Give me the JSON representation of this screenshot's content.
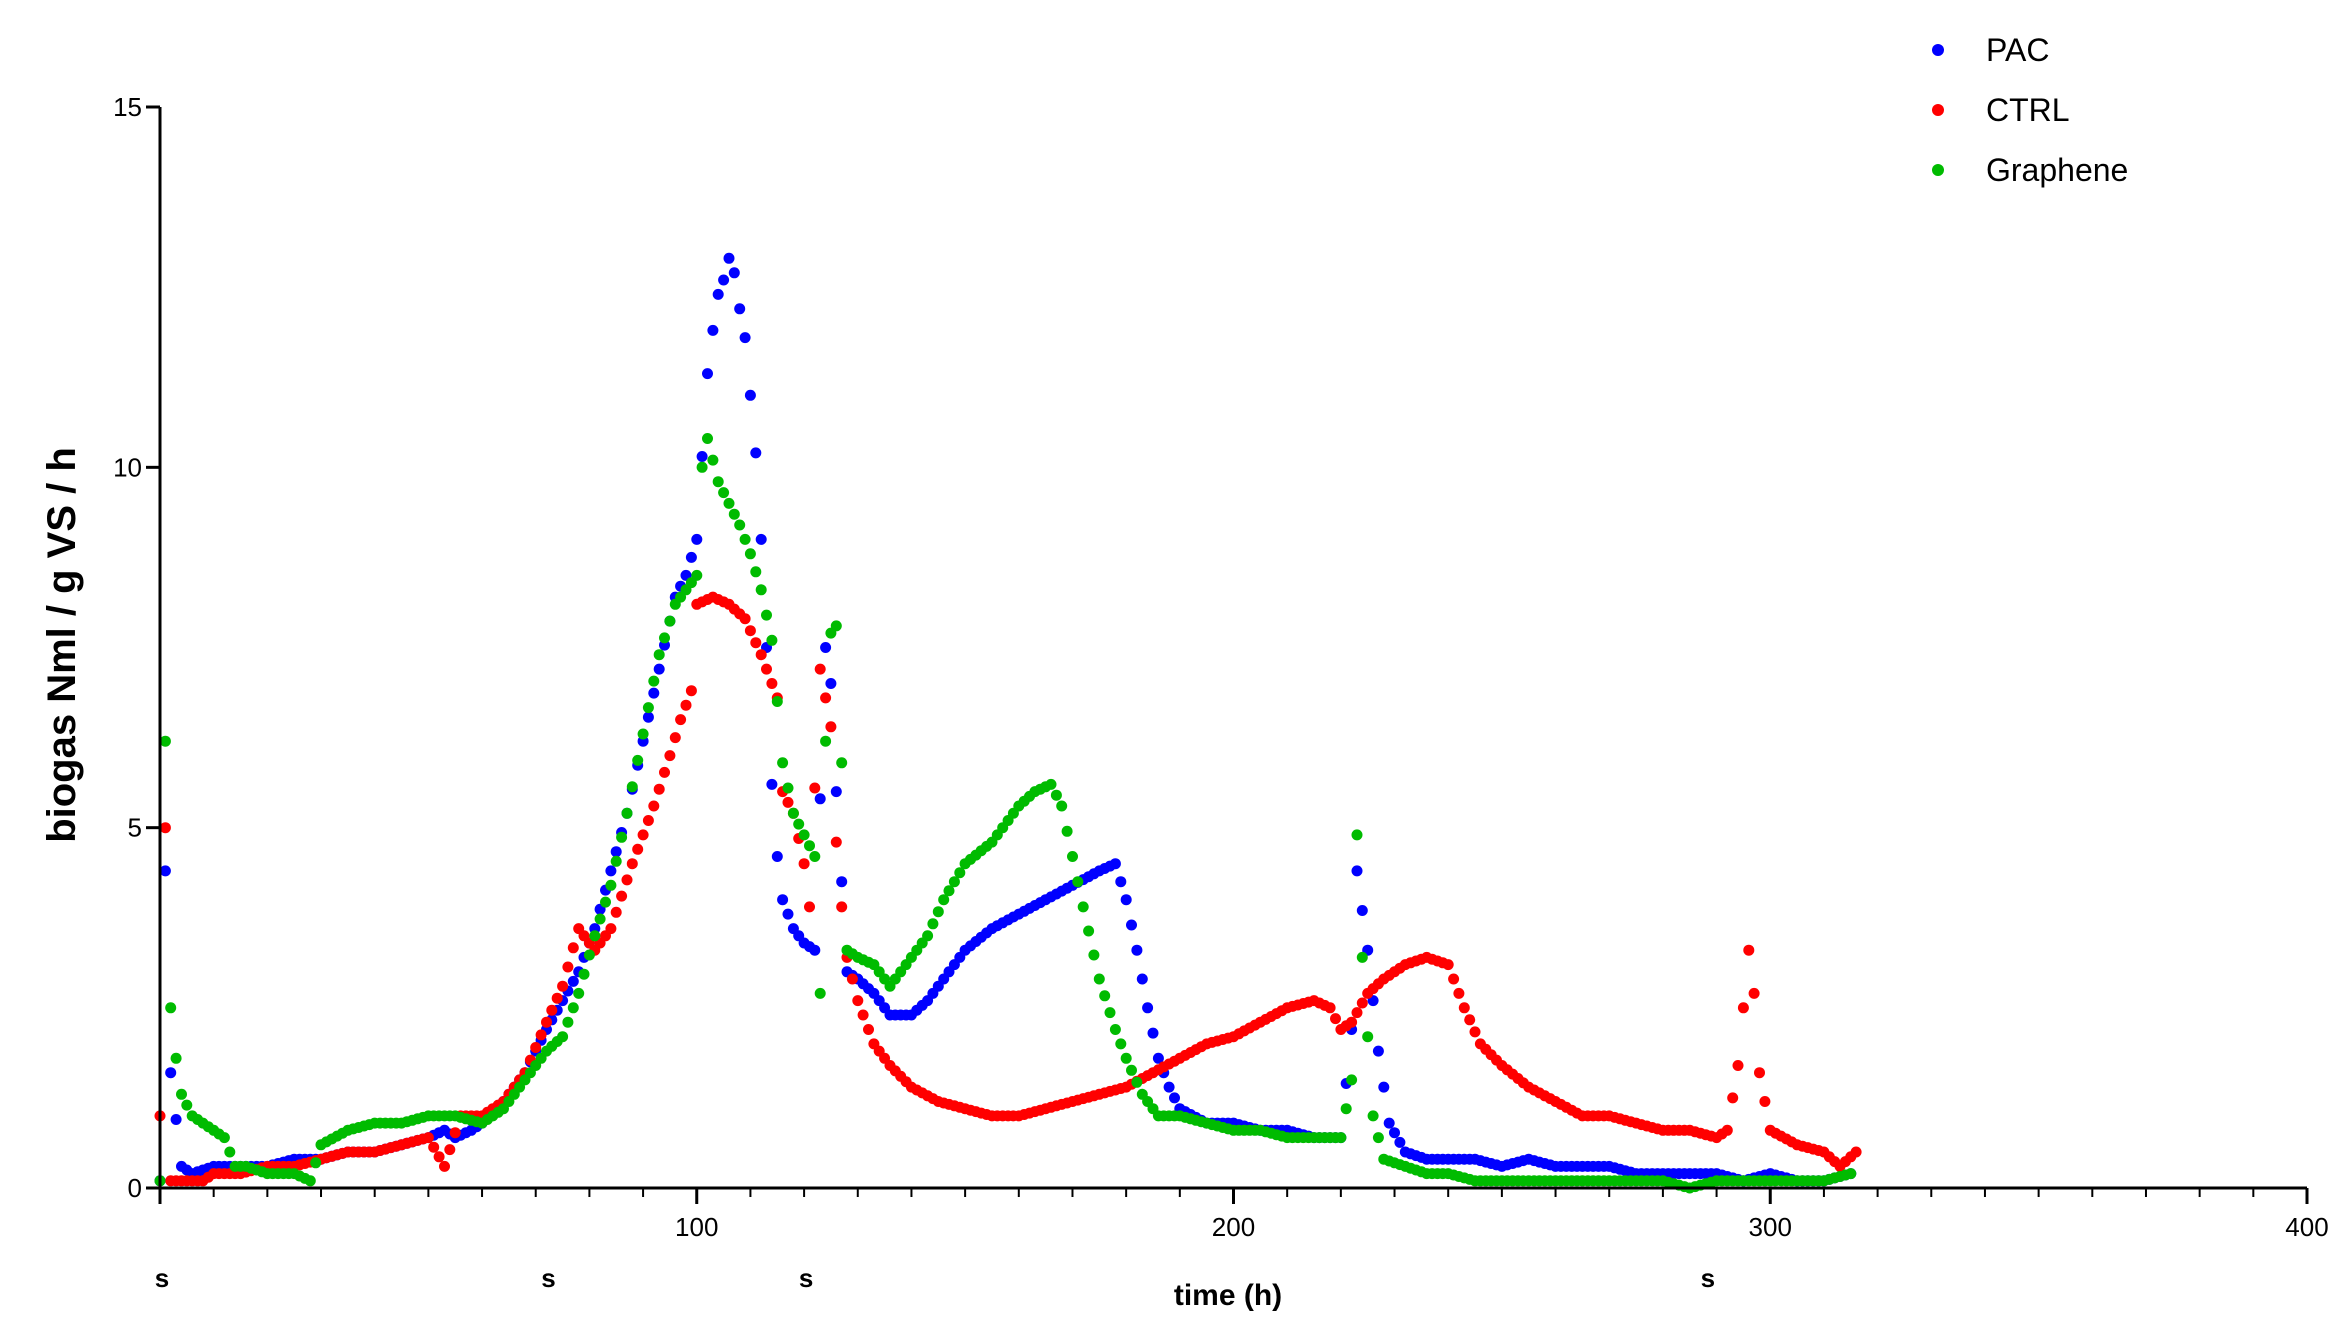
{
  "chart_data": {
    "type": "scatter",
    "title": "",
    "xlabel": "time (h)",
    "ylabel": "biogas  Nml / g  VS  / h",
    "xlim": [
      0,
      400
    ],
    "ylim": [
      0,
      15
    ],
    "xticks": [
      0,
      100,
      200,
      300,
      400
    ],
    "xtick_labels": [
      "",
      "100",
      "200",
      "300",
      "400"
    ],
    "yticks": [
      0,
      5,
      10,
      15
    ],
    "ytick_labels": [
      "0",
      "5",
      "10",
      "15"
    ],
    "grid": false,
    "legend_position": "top-right",
    "sample_marks": {
      "label": "s",
      "x": [
        0,
        72,
        120,
        288
      ]
    },
    "series": [
      {
        "name": "PAC",
        "color": "#0000ff",
        "keypoints": [
          [
            0,
            0.1
          ],
          [
            1,
            4.4
          ],
          [
            2,
            1.6
          ],
          [
            4,
            0.3
          ],
          [
            6,
            0.2
          ],
          [
            10,
            0.3
          ],
          [
            15,
            0.3
          ],
          [
            20,
            0.3
          ],
          [
            25,
            0.4
          ],
          [
            30,
            0.4
          ],
          [
            35,
            0.5
          ],
          [
            40,
            0.5
          ],
          [
            45,
            0.6
          ],
          [
            50,
            0.7
          ],
          [
            53,
            0.8
          ],
          [
            55,
            0.7
          ],
          [
            58,
            0.8
          ],
          [
            60,
            0.9
          ],
          [
            64,
            1.2
          ],
          [
            68,
            1.6
          ],
          [
            72,
            2.2
          ],
          [
            75,
            2.6
          ],
          [
            78,
            3.0
          ],
          [
            81,
            3.6
          ],
          [
            84,
            4.4
          ],
          [
            87,
            5.2
          ],
          [
            90,
            6.2
          ],
          [
            93,
            7.2
          ],
          [
            96,
            8.2
          ],
          [
            98,
            8.5
          ],
          [
            100,
            9.0
          ],
          [
            102,
            11.3
          ],
          [
            103,
            11.9
          ],
          [
            104,
            12.4
          ],
          [
            105,
            12.6
          ],
          [
            106,
            12.9
          ],
          [
            107,
            12.7
          ],
          [
            108,
            12.2
          ],
          [
            109,
            11.8
          ],
          [
            110,
            11.0
          ],
          [
            111,
            10.2
          ],
          [
            112,
            9.0
          ],
          [
            113,
            7.5
          ],
          [
            114,
            5.6
          ],
          [
            115,
            4.6
          ],
          [
            116,
            4.0
          ],
          [
            118,
            3.6
          ],
          [
            120,
            3.4
          ],
          [
            122,
            3.3
          ],
          [
            124,
            7.5
          ],
          [
            125,
            7.0
          ],
          [
            126,
            5.5
          ],
          [
            128,
            3.0
          ],
          [
            130,
            2.9
          ],
          [
            133,
            2.7
          ],
          [
            136,
            2.4
          ],
          [
            140,
            2.4
          ],
          [
            143,
            2.6
          ],
          [
            146,
            2.9
          ],
          [
            150,
            3.3
          ],
          [
            155,
            3.6
          ],
          [
            160,
            3.8
          ],
          [
            165,
            4.0
          ],
          [
            170,
            4.2
          ],
          [
            175,
            4.4
          ],
          [
            178,
            4.5
          ],
          [
            180,
            4.0
          ],
          [
            182,
            3.3
          ],
          [
            184,
            2.5
          ],
          [
            186,
            1.8
          ],
          [
            188,
            1.4
          ],
          [
            190,
            1.1
          ],
          [
            195,
            0.9
          ],
          [
            200,
            0.9
          ],
          [
            205,
            0.8
          ],
          [
            210,
            0.8
          ],
          [
            215,
            0.7
          ],
          [
            220,
            0.7
          ],
          [
            222,
            2.2
          ],
          [
            223,
            4.4
          ],
          [
            225,
            3.3
          ],
          [
            227,
            1.9
          ],
          [
            229,
            0.9
          ],
          [
            232,
            0.5
          ],
          [
            236,
            0.4
          ],
          [
            240,
            0.4
          ],
          [
            245,
            0.4
          ],
          [
            250,
            0.3
          ],
          [
            255,
            0.4
          ],
          [
            260,
            0.3
          ],
          [
            265,
            0.3
          ],
          [
            270,
            0.3
          ],
          [
            275,
            0.2
          ],
          [
            280,
            0.2
          ],
          [
            285,
            0.2
          ],
          [
            290,
            0.2
          ],
          [
            295,
            0.1
          ],
          [
            300,
            0.2
          ],
          [
            305,
            0.1
          ],
          [
            310,
            0.1
          ],
          [
            315,
            0.2
          ]
        ]
      },
      {
        "name": "CTRL",
        "color": "#ff0000",
        "keypoints": [
          [
            0,
            1.0
          ],
          [
            1,
            5.0
          ],
          [
            2,
            0.1
          ],
          [
            5,
            0.1
          ],
          [
            8,
            0.1
          ],
          [
            10,
            0.2
          ],
          [
            15,
            0.2
          ],
          [
            20,
            0.3
          ],
          [
            25,
            0.3
          ],
          [
            30,
            0.4
          ],
          [
            35,
            0.5
          ],
          [
            40,
            0.5
          ],
          [
            45,
            0.6
          ],
          [
            50,
            0.7
          ],
          [
            53,
            0.3
          ],
          [
            56,
            1.0
          ],
          [
            60,
            1.0
          ],
          [
            64,
            1.2
          ],
          [
            68,
            1.6
          ],
          [
            72,
            2.3
          ],
          [
            75,
            2.8
          ],
          [
            78,
            3.6
          ],
          [
            81,
            3.3
          ],
          [
            84,
            3.6
          ],
          [
            88,
            4.5
          ],
          [
            92,
            5.3
          ],
          [
            95,
            6.0
          ],
          [
            97,
            6.5
          ],
          [
            99,
            6.9
          ],
          [
            100,
            8.1
          ],
          [
            103,
            8.2
          ],
          [
            106,
            8.1
          ],
          [
            109,
            7.9
          ],
          [
            112,
            7.4
          ],
          [
            115,
            6.8
          ],
          [
            116,
            5.5
          ],
          [
            118,
            5.2
          ],
          [
            120,
            4.5
          ],
          [
            121,
            3.9
          ],
          [
            123,
            7.2
          ],
          [
            125,
            6.4
          ],
          [
            126,
            4.8
          ],
          [
            127,
            3.9
          ],
          [
            128,
            3.2
          ],
          [
            130,
            2.6
          ],
          [
            133,
            2.0
          ],
          [
            136,
            1.7
          ],
          [
            140,
            1.4
          ],
          [
            145,
            1.2
          ],
          [
            150,
            1.1
          ],
          [
            155,
            1.0
          ],
          [
            160,
            1.0
          ],
          [
            165,
            1.1
          ],
          [
            170,
            1.2
          ],
          [
            175,
            1.3
          ],
          [
            180,
            1.4
          ],
          [
            185,
            1.6
          ],
          [
            190,
            1.8
          ],
          [
            195,
            2.0
          ],
          [
            200,
            2.1
          ],
          [
            205,
            2.3
          ],
          [
            210,
            2.5
          ],
          [
            215,
            2.6
          ],
          [
            218,
            2.5
          ],
          [
            220,
            2.2
          ],
          [
            222,
            2.3
          ],
          [
            225,
            2.7
          ],
          [
            228,
            2.9
          ],
          [
            232,
            3.1
          ],
          [
            236,
            3.2
          ],
          [
            240,
            3.1
          ],
          [
            243,
            2.5
          ],
          [
            246,
            2.0
          ],
          [
            250,
            1.7
          ],
          [
            255,
            1.4
          ],
          [
            260,
            1.2
          ],
          [
            265,
            1.0
          ],
          [
            270,
            1.0
          ],
          [
            275,
            0.9
          ],
          [
            280,
            0.8
          ],
          [
            285,
            0.8
          ],
          [
            290,
            0.7
          ],
          [
            292,
            0.8
          ],
          [
            294,
            1.7
          ],
          [
            296,
            3.3
          ],
          [
            297,
            2.7
          ],
          [
            298,
            1.6
          ],
          [
            300,
            0.8
          ],
          [
            305,
            0.6
          ],
          [
            310,
            0.5
          ],
          [
            313,
            0.3
          ],
          [
            316,
            0.5
          ]
        ]
      },
      {
        "name": "Graphene",
        "color": "#00bb00",
        "keypoints": [
          [
            0,
            0.1
          ],
          [
            1,
            6.2
          ],
          [
            2,
            2.5
          ],
          [
            3,
            1.8
          ],
          [
            4,
            1.3
          ],
          [
            6,
            1.0
          ],
          [
            8,
            0.9
          ],
          [
            10,
            0.8
          ],
          [
            12,
            0.7
          ],
          [
            14,
            0.3
          ],
          [
            16,
            0.3
          ],
          [
            20,
            0.2
          ],
          [
            25,
            0.2
          ],
          [
            28,
            0.1
          ],
          [
            30,
            0.6
          ],
          [
            35,
            0.8
          ],
          [
            40,
            0.9
          ],
          [
            45,
            0.9
          ],
          [
            50,
            1.0
          ],
          [
            55,
            1.0
          ],
          [
            60,
            0.9
          ],
          [
            64,
            1.1
          ],
          [
            68,
            1.5
          ],
          [
            72,
            1.9
          ],
          [
            75,
            2.1
          ],
          [
            78,
            2.7
          ],
          [
            81,
            3.5
          ],
          [
            84,
            4.2
          ],
          [
            87,
            5.2
          ],
          [
            90,
            6.3
          ],
          [
            93,
            7.4
          ],
          [
            96,
            8.1
          ],
          [
            98,
            8.3
          ],
          [
            100,
            8.5
          ],
          [
            101,
            10.0
          ],
          [
            102,
            10.4
          ],
          [
            104,
            9.8
          ],
          [
            106,
            9.5
          ],
          [
            108,
            9.2
          ],
          [
            110,
            8.8
          ],
          [
            112,
            8.3
          ],
          [
            114,
            7.6
          ],
          [
            116,
            5.9
          ],
          [
            118,
            5.2
          ],
          [
            120,
            4.9
          ],
          [
            122,
            4.6
          ],
          [
            123,
            2.7
          ],
          [
            124,
            6.2
          ],
          [
            125,
            7.7
          ],
          [
            126,
            7.8
          ],
          [
            127,
            5.9
          ],
          [
            128,
            3.3
          ],
          [
            130,
            3.2
          ],
          [
            133,
            3.1
          ],
          [
            136,
            2.8
          ],
          [
            140,
            3.2
          ],
          [
            143,
            3.5
          ],
          [
            146,
            4.0
          ],
          [
            150,
            4.5
          ],
          [
            155,
            4.8
          ],
          [
            160,
            5.3
          ],
          [
            163,
            5.5
          ],
          [
            166,
            5.6
          ],
          [
            168,
            5.3
          ],
          [
            170,
            4.6
          ],
          [
            172,
            3.9
          ],
          [
            175,
            2.9
          ],
          [
            178,
            2.2
          ],
          [
            180,
            1.8
          ],
          [
            183,
            1.3
          ],
          [
            186,
            1.0
          ],
          [
            190,
            1.0
          ],
          [
            195,
            0.9
          ],
          [
            200,
            0.8
          ],
          [
            205,
            0.8
          ],
          [
            210,
            0.7
          ],
          [
            215,
            0.7
          ],
          [
            220,
            0.7
          ],
          [
            222,
            1.5
          ],
          [
            223,
            4.9
          ],
          [
            224,
            3.2
          ],
          [
            226,
            1.0
          ],
          [
            228,
            0.4
          ],
          [
            232,
            0.3
          ],
          [
            236,
            0.2
          ],
          [
            240,
            0.2
          ],
          [
            245,
            0.1
          ],
          [
            250,
            0.1
          ],
          [
            255,
            0.1
          ],
          [
            260,
            0.1
          ],
          [
            265,
            0.1
          ],
          [
            270,
            0.1
          ],
          [
            275,
            0.1
          ],
          [
            280,
            0.1
          ],
          [
            285,
            0.0
          ],
          [
            290,
            0.1
          ],
          [
            295,
            0.1
          ],
          [
            300,
            0.1
          ],
          [
            305,
            0.1
          ],
          [
            310,
            0.1
          ],
          [
            315,
            0.2
          ]
        ]
      }
    ]
  }
}
